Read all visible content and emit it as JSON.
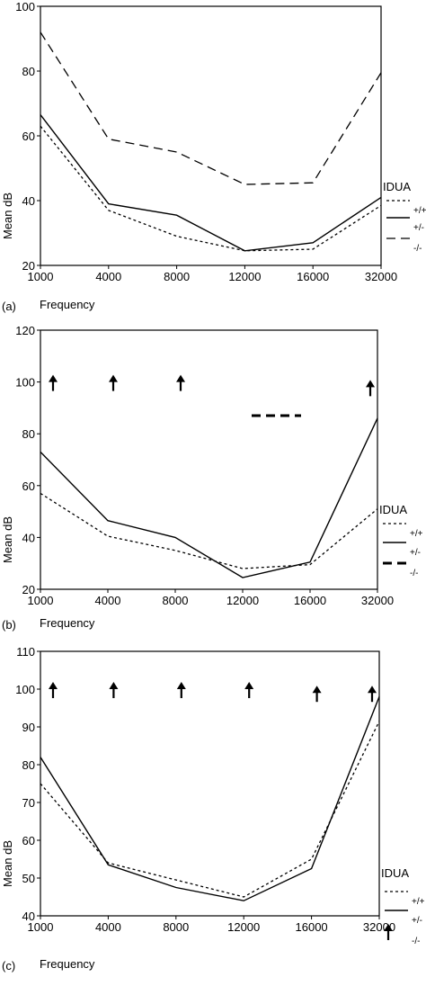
{
  "chart_data": [
    {
      "type": "line",
      "panel_label": "(a)",
      "xlabel": "Frequency",
      "ylabel": "Mean dB",
      "x": [
        1000,
        4000,
        8000,
        12000,
        16000,
        32000
      ],
      "x_tick_labels": [
        "1000",
        "4000",
        "8000",
        "12000",
        "16000",
        "32000"
      ],
      "ylim": [
        20,
        100
      ],
      "y_ticks": [
        20,
        40,
        60,
        80,
        100
      ],
      "y_tick_labels": [
        "20",
        "40",
        "60",
        "80",
        "100"
      ],
      "legend_title": "IDUA",
      "series": [
        {
          "name": "+/+",
          "style": "dotted",
          "values": [
            63,
            37,
            29,
            24.5,
            25,
            38.5
          ]
        },
        {
          "name": "+/-",
          "style": "solid",
          "values": [
            66.5,
            39,
            35.5,
            24.5,
            27,
            41
          ]
        },
        {
          "name": "-/-",
          "style": "dashed",
          "values": [
            92,
            59,
            55,
            45,
            45.5,
            79.5
          ]
        }
      ],
      "arrows": []
    },
    {
      "type": "line",
      "panel_label": "(b)",
      "xlabel": "Frequency",
      "ylabel": "Mean dB",
      "x": [
        1000,
        4000,
        8000,
        12000,
        16000,
        32000
      ],
      "x_tick_labels": [
        "1000",
        "4000",
        "8000",
        "12000",
        "16000",
        "32000"
      ],
      "ylim": [
        20,
        120
      ],
      "y_ticks": [
        20,
        40,
        60,
        80,
        100,
        120
      ],
      "y_tick_labels": [
        "20",
        "40",
        "60",
        "80",
        "100",
        "120"
      ],
      "legend_title": "IDUA",
      "series": [
        {
          "name": "+/+",
          "style": "dotted",
          "values": [
            57,
            40.5,
            35,
            28,
            29.5,
            51
          ]
        },
        {
          "name": "+/-",
          "style": "solid",
          "values": [
            73,
            46.5,
            40,
            24.5,
            30.5,
            86
          ]
        },
        {
          "name": "-/-",
          "style": "thick-dashed",
          "values": [
            null,
            null,
            null,
            87,
            87,
            null
          ]
        }
      ],
      "arrows": [
        {
          "x": 1000,
          "y": 100
        },
        {
          "x": 4000,
          "y": 100
        },
        {
          "x": 8000,
          "y": 100
        },
        {
          "x": 32000,
          "y": 98
        }
      ]
    },
    {
      "type": "line",
      "panel_label": "(c)",
      "xlabel": "Frequency",
      "ylabel": "Mean dB",
      "x": [
        1000,
        4000,
        8000,
        12000,
        16000,
        32000
      ],
      "x_tick_labels": [
        "1000",
        "4000",
        "8000",
        "12000",
        "16000",
        "32000"
      ],
      "ylim": [
        40,
        110
      ],
      "y_ticks": [
        40,
        50,
        60,
        70,
        80,
        90,
        100,
        110
      ],
      "y_tick_labels": [
        "40",
        "50",
        "60",
        "70",
        "80",
        "90",
        "100",
        "110"
      ],
      "legend_title": "IDUA",
      "series": [
        {
          "name": "+/+",
          "style": "dotted",
          "values": [
            75,
            54,
            49.5,
            45,
            55,
            91.5
          ]
        },
        {
          "name": "+/-",
          "style": "solid",
          "values": [
            82,
            53.5,
            47.5,
            44,
            52.5,
            98
          ]
        },
        {
          "name": "-/-",
          "style": "arrow",
          "values": [
            null,
            null,
            null,
            null,
            null,
            null
          ]
        }
      ],
      "arrows": [
        {
          "x": 1000,
          "y": 100
        },
        {
          "x": 4000,
          "y": 100
        },
        {
          "x": 8000,
          "y": 100
        },
        {
          "x": 12000,
          "y": 100
        },
        {
          "x": 16000,
          "y": 99
        },
        {
          "x": 32000,
          "y": 99
        }
      ]
    }
  ]
}
